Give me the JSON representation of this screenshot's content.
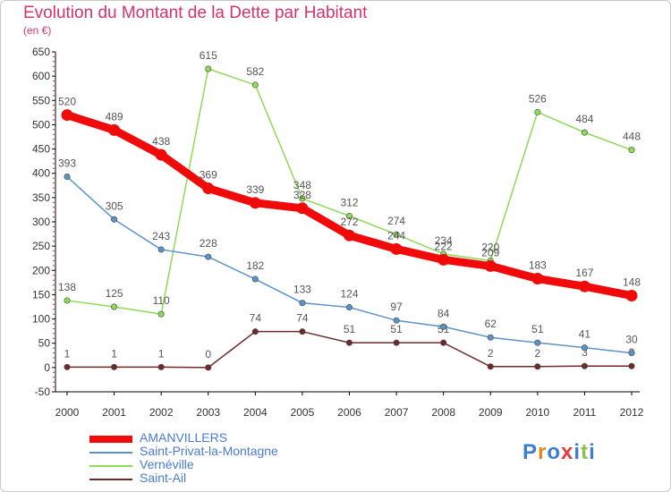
{
  "header": {
    "title": "Evolution du Montant de la Dette par Habitant",
    "unit": "(en €)"
  },
  "logo": {
    "text": "Proxiti",
    "colors": [
      "#3c7fd0",
      "#e08a1e",
      "#3c7fd0",
      "#e03c3c",
      "#3c7fd0",
      "#8bc34a",
      "#3c7fd0"
    ]
  },
  "chart_data": {
    "type": "line",
    "title": "Evolution du Montant de la Dette par Habitant",
    "ylabel": "(en €)",
    "xlabel": "",
    "x": [
      "2000",
      "2001",
      "2002",
      "2003",
      "2004",
      "2005",
      "2006",
      "2007",
      "2008",
      "2009",
      "2010",
      "2011",
      "2012"
    ],
    "ylim": [
      -50,
      650
    ],
    "yticks": [
      -50,
      0,
      50,
      100,
      150,
      200,
      250,
      300,
      350,
      400,
      450,
      500,
      550,
      600,
      650
    ],
    "grid": false,
    "legend_position": "bottom",
    "series": [
      {
        "name": "AMANVILLERS",
        "color": "#f00a0a",
        "values": [
          520,
          489,
          438,
          369,
          339,
          328,
          272,
          244,
          222,
          209,
          183,
          167,
          148
        ]
      },
      {
        "name": "Saint-Privat-la-Montagne",
        "color": "#5b93c8",
        "values": [
          393,
          305,
          243,
          228,
          182,
          133,
          124,
          97,
          84,
          62,
          51,
          41,
          30
        ]
      },
      {
        "name": "Vernéville",
        "color": "#8edb57",
        "values": [
          138,
          125,
          110,
          615,
          582,
          348,
          312,
          274,
          234,
          220,
          526,
          484,
          448
        ]
      },
      {
        "name": "Saint-Ail",
        "color": "#6e2a2a",
        "values": [
          1,
          1,
          1,
          0,
          74,
          74,
          51,
          51,
          51,
          2,
          2,
          3,
          3
        ]
      }
    ]
  }
}
